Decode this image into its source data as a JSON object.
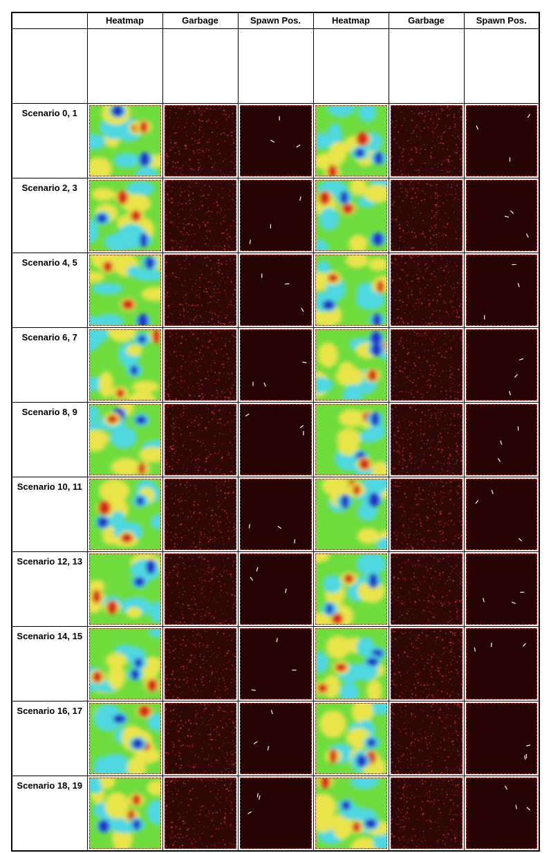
{
  "header": {
    "columns": [
      "Heatmap",
      "Garbage",
      "Spawn Pos.",
      "Heatmap",
      "Garbage",
      "Spawn Pos."
    ]
  },
  "rows": [
    {
      "label": "Scenario 0, 1"
    },
    {
      "label": "Scenario 2, 3"
    },
    {
      "label": "Scenario 4, 5"
    },
    {
      "label": "Scenario 6, 7"
    },
    {
      "label": "Scenario 8, 9"
    },
    {
      "label": "Scenario 10, 11"
    },
    {
      "label": "Scenario 12, 13"
    },
    {
      "label": "Scenario 14, 15"
    },
    {
      "label": "Scenario 16, 17"
    },
    {
      "label": "Scenario 18, 19"
    }
  ],
  "colors": {
    "heat_red": "#d7261e",
    "heat_yellow": "#e8e44a",
    "heat_green": "#6fdc3e",
    "heat_cyan": "#4fd8e0",
    "heat_blue": "#2030c8",
    "garbage_bg": "#2e0707",
    "garbage_dot": "#e83a34",
    "spawn_bg": "#260303",
    "frame": "#c0302a"
  }
}
